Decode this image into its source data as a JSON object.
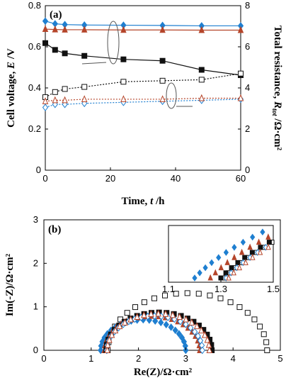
{
  "chart_data": [
    {
      "type": "scatter",
      "panel_label": "(a)",
      "xlabel_main": "Time, ",
      "xlabel_var": "t",
      "xlabel_unit": " /h",
      "ylabel_main": "Cell voltage, ",
      "ylabel_var": "E",
      "ylabel_unit": " /V",
      "y2label_main": "Total resistance, ",
      "y2label_var": "R",
      "y2label_sub": "tot",
      "y2label_unit": " /Ω·cm²",
      "xlim": [
        0,
        60
      ],
      "ylim": [
        0,
        0.8
      ],
      "y2lim": [
        0,
        8
      ],
      "xticks": [
        "0",
        "20",
        "40",
        "60"
      ],
      "yticks": [
        "0",
        "0.2",
        "0.4",
        "0.6",
        "0.8"
      ],
      "y2ticks": [
        "0",
        "2",
        "4",
        "6",
        "8"
      ],
      "series": [
        {
          "axis": "left",
          "marker": "diamond",
          "color": "#1f7fd0",
          "filled": true,
          "line": "solid",
          "x": [
            0,
            3,
            6,
            12,
            24,
            36,
            48,
            60
          ],
          "y": [
            0.725,
            0.712,
            0.708,
            0.706,
            0.705,
            0.704,
            0.702,
            0.702
          ]
        },
        {
          "axis": "left",
          "marker": "triangle",
          "color": "#b5452a",
          "filled": true,
          "line": "solid",
          "x": [
            0,
            3,
            6,
            12,
            24,
            36,
            48,
            60
          ],
          "y": [
            0.686,
            0.684,
            0.683,
            0.683,
            0.682,
            0.682,
            0.681,
            0.681
          ]
        },
        {
          "axis": "left",
          "marker": "square",
          "color": "#111111",
          "filled": true,
          "line": "solid",
          "x": [
            0,
            3,
            6,
            12,
            24,
            36,
            48,
            60
          ],
          "y": [
            0.618,
            0.585,
            0.568,
            0.556,
            0.539,
            0.532,
            0.488,
            0.462
          ]
        },
        {
          "axis": "right",
          "marker": "square",
          "color": "#111111",
          "filled": false,
          "line": "dotted",
          "x": [
            0,
            3,
            6,
            12,
            24,
            36,
            48,
            60
          ],
          "y": [
            3.55,
            3.8,
            3.95,
            4.05,
            4.3,
            4.35,
            4.4,
            4.7
          ]
        },
        {
          "axis": "right",
          "marker": "diamond",
          "color": "#1f7fd0",
          "filled": false,
          "line": "dotted",
          "x": [
            0,
            3,
            6,
            12,
            24,
            36,
            48,
            60
          ],
          "y": [
            3.05,
            3.2,
            3.2,
            3.25,
            3.3,
            3.35,
            3.4,
            3.45
          ]
        },
        {
          "axis": "right",
          "marker": "triangle",
          "color": "#b5452a",
          "filled": false,
          "line": "dotted",
          "x": [
            0,
            3,
            6,
            12,
            24,
            36,
            48,
            60
          ],
          "y": [
            3.35,
            3.4,
            3.4,
            3.45,
            3.45,
            3.45,
            3.5,
            3.5
          ]
        }
      ]
    },
    {
      "type": "scatter",
      "panel_label": "(b)",
      "xlabel": "Re(Z)/Ω·cm²",
      "ylabel": "Im(-Z)/Ω·cm²",
      "xlim": [
        0,
        5
      ],
      "ylim": [
        0,
        3
      ],
      "xticks": [
        "0",
        "1",
        "2",
        "3",
        "4",
        "5"
      ],
      "yticks": [
        "0",
        "1",
        "2",
        "3"
      ],
      "series": [
        {
          "marker": "square",
          "color": "#111111",
          "filled": false,
          "r_low": 1.35,
          "r_high": 4.72
        },
        {
          "marker": "diamond",
          "color": "#1f7fd0",
          "filled": true,
          "r_low": 1.2,
          "r_high": 3.0
        },
        {
          "marker": "triangle",
          "color": "#b5452a",
          "filled": true,
          "r_low": 1.28,
          "r_high": 3.3
        },
        {
          "marker": "square",
          "color": "#111111",
          "filled": true,
          "r_low": 1.32,
          "r_high": 3.55
        },
        {
          "marker": "diamond",
          "color": "#1f7fd0",
          "filled": false,
          "r_low": 1.33,
          "r_high": 3.35
        },
        {
          "marker": "triangle",
          "color": "#b5452a",
          "filled": false,
          "r_low": 1.34,
          "r_high": 3.5
        }
      ],
      "inset": {
        "xlim": [
          1.1,
          1.5
        ],
        "xticks": [
          "1.1",
          "1.3",
          "1.5"
        ]
      }
    }
  ]
}
